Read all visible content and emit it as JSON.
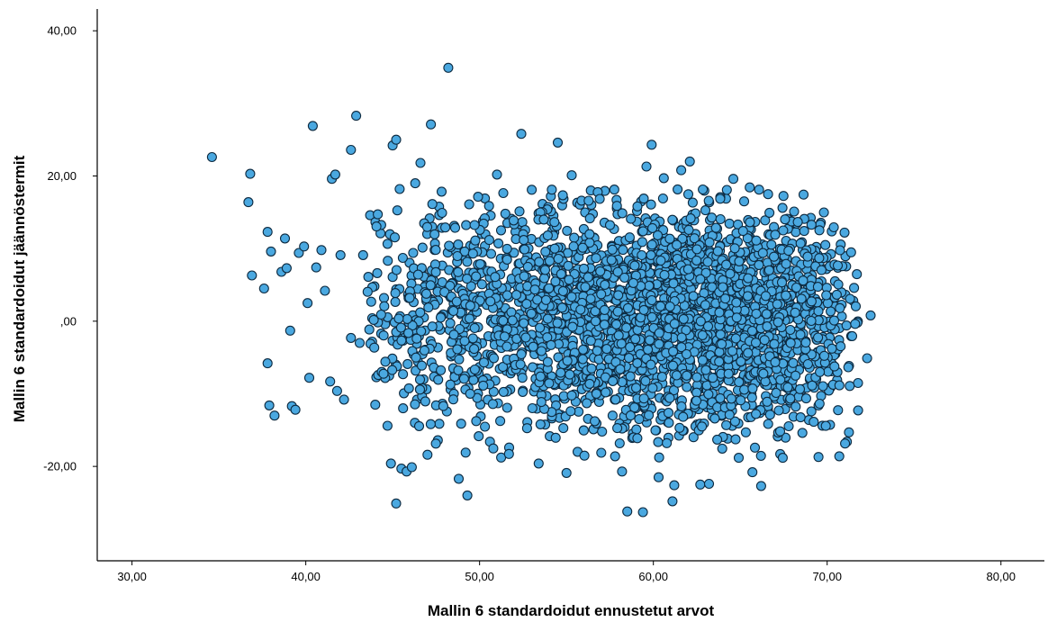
{
  "chart_data": {
    "type": "scatter",
    "title": "",
    "xlabel": "Mallin 6 standardoidut ennustetut arvot",
    "ylabel": "Mallin 6 standardoidut jäännöstermit",
    "xlim": [
      28,
      82.5
    ],
    "ylim": [
      -33,
      43
    ],
    "x_ticks": [
      30,
      40,
      50,
      60,
      70,
      80
    ],
    "x_tick_labels": [
      "30,00",
      "40,00",
      "50,00",
      "60,00",
      "70,00",
      "80,00"
    ],
    "y_ticks": [
      -20,
      0,
      20,
      40
    ],
    "y_tick_labels": [
      "-20,00",
      ",00",
      "20,00",
      "40,00"
    ],
    "grid": false,
    "marker_color": "#4aa8e0",
    "marker_edge_color": "#0d2a40",
    "points": [
      [
        34.6,
        22.6
      ],
      [
        36.8,
        20.3
      ],
      [
        36.7,
        16.4
      ],
      [
        36.9,
        6.3
      ],
      [
        37.6,
        4.5
      ],
      [
        37.8,
        12.3
      ],
      [
        38.0,
        9.6
      ],
      [
        37.8,
        -5.8
      ],
      [
        37.9,
        -11.6
      ],
      [
        38.2,
        -13.0
      ],
      [
        38.6,
        6.8
      ],
      [
        38.8,
        11.4
      ],
      [
        38.9,
        7.3
      ],
      [
        39.1,
        -1.3
      ],
      [
        39.2,
        -11.7
      ],
      [
        39.4,
        -12.2
      ],
      [
        39.6,
        9.4
      ],
      [
        39.9,
        10.3
      ],
      [
        40.1,
        2.5
      ],
      [
        40.2,
        -7.8
      ],
      [
        40.4,
        26.9
      ],
      [
        40.6,
        7.4
      ],
      [
        40.9,
        9.8
      ],
      [
        41.1,
        4.2
      ],
      [
        41.4,
        -8.3
      ],
      [
        41.5,
        19.6
      ],
      [
        41.7,
        20.2
      ],
      [
        41.8,
        -9.6
      ],
      [
        42.0,
        9.1
      ],
      [
        42.2,
        -10.8
      ],
      [
        42.6,
        -2.3
      ],
      [
        42.6,
        23.6
      ],
      [
        42.9,
        28.3
      ],
      [
        43.3,
        9.1
      ],
      [
        43.6,
        6.1
      ],
      [
        43.7,
        14.6
      ],
      [
        44.0,
        -11.5
      ],
      [
        44.3,
        12.1
      ],
      [
        44.7,
        -14.4
      ],
      [
        44.9,
        -19.6
      ],
      [
        45.0,
        24.2
      ],
      [
        45.2,
        25.0
      ],
      [
        45.2,
        -25.1
      ],
      [
        45.4,
        18.2
      ],
      [
        45.5,
        -20.3
      ],
      [
        45.8,
        -20.7
      ],
      [
        46.1,
        -20.1
      ],
      [
        46.3,
        19.0
      ],
      [
        46.6,
        21.8
      ],
      [
        47.2,
        27.1
      ],
      [
        47.0,
        -18.4
      ],
      [
        47.6,
        -16.4
      ],
      [
        48.2,
        34.9
      ],
      [
        48.8,
        -21.7
      ],
      [
        49.2,
        -18.1
      ],
      [
        49.3,
        -24.0
      ],
      [
        49.4,
        16.1
      ],
      [
        50.2,
        13.8
      ],
      [
        50.6,
        -16.6
      ],
      [
        51.0,
        20.2
      ],
      [
        51.7,
        -17.4
      ],
      [
        52.4,
        25.8
      ],
      [
        53.0,
        18.1
      ],
      [
        53.4,
        -19.6
      ],
      [
        54.1,
        17.2
      ],
      [
        54.5,
        24.6
      ],
      [
        55.0,
        -20.9
      ],
      [
        55.3,
        20.1
      ],
      [
        56.4,
        18.0
      ],
      [
        57.8,
        -18.6
      ],
      [
        58.2,
        -20.7
      ],
      [
        58.5,
        -26.2
      ],
      [
        59.4,
        -26.3
      ],
      [
        59.6,
        21.3
      ],
      [
        59.9,
        24.3
      ],
      [
        60.3,
        -21.5
      ],
      [
        60.6,
        19.7
      ],
      [
        61.1,
        -24.8
      ],
      [
        61.2,
        -22.6
      ],
      [
        61.6,
        20.8
      ],
      [
        62.1,
        22.0
      ],
      [
        62.7,
        -22.5
      ],
      [
        63.2,
        -22.4
      ],
      [
        64.6,
        19.6
      ],
      [
        65.7,
        -20.8
      ],
      [
        66.2,
        -22.7
      ],
      [
        66.6,
        17.5
      ],
      [
        67.3,
        -18.3
      ],
      [
        68.1,
        15.1
      ],
      [
        69.5,
        -18.7
      ],
      [
        70.7,
        -18.6
      ],
      [
        71.0,
        12.2
      ],
      [
        71.5,
        2.8
      ],
      [
        72.3,
        -5.1
      ],
      [
        72.5,
        0.8
      ],
      [
        45.6,
        -12.0
      ],
      [
        46.4,
        -10.8
      ],
      [
        44.5,
        3.2
      ],
      [
        43.1,
        -3.0
      ],
      [
        44.8,
        -7.5
      ]
    ],
    "clusters": [
      {
        "cx": 51.0,
        "cy": 1.0,
        "sx": 3.4,
        "sy": 7.5,
        "n": 450
      },
      {
        "cx": 57.5,
        "cy": 0.0,
        "sx": 3.6,
        "sy": 8.0,
        "n": 950
      },
      {
        "cx": 63.5,
        "cy": 0.0,
        "sx": 3.2,
        "sy": 8.0,
        "n": 1000
      },
      {
        "cx": 67.8,
        "cy": 0.5,
        "sx": 2.2,
        "sy": 7.0,
        "n": 420
      },
      {
        "cx": 46.5,
        "cy": 2.0,
        "sx": 1.6,
        "sy": 7.5,
        "n": 130
      },
      {
        "cx": 42.0,
        "cy": 0.5,
        "sx": 2.5,
        "sy": 7.0,
        "n": 60
      }
    ],
    "cluster_bounds": {
      "xmin": 43.5,
      "xmax": 71.8,
      "ymin": -19,
      "ymax": 18.5
    }
  }
}
